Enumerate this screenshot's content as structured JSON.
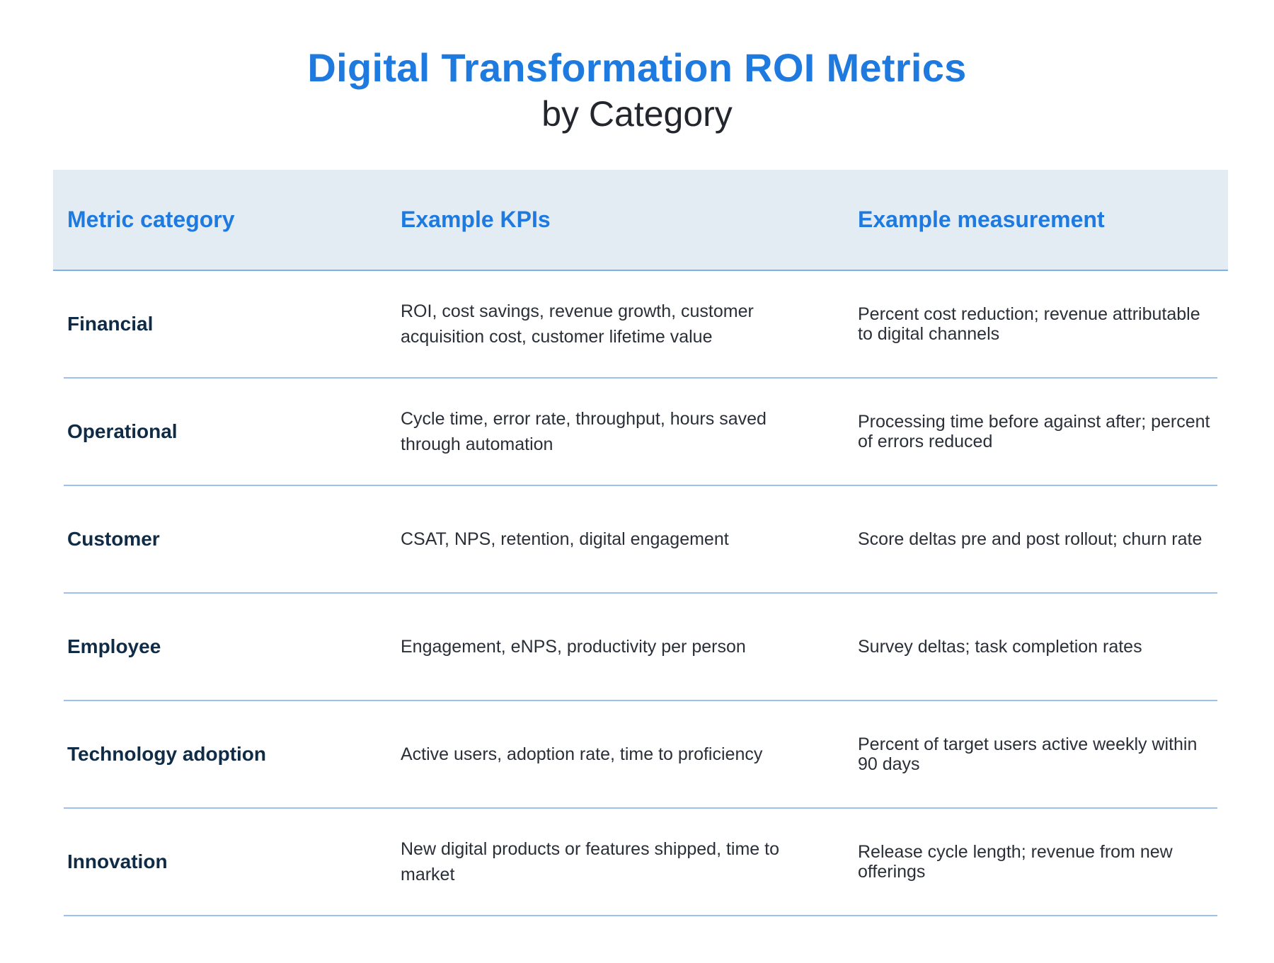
{
  "title": "Digital Transformation ROI Metrics",
  "subtitle": "by Category",
  "table": {
    "headers": [
      "Metric category",
      "Example KPIs",
      "Example measurement"
    ],
    "rows": [
      {
        "category": "Financial",
        "kpis": "ROI, cost savings, revenue growth, customer acquisition cost, customer lifetime value",
        "measurement": "Percent cost reduction; revenue attributable to digital channels"
      },
      {
        "category": "Operational",
        "kpis": "Cycle time, error rate, throughput, hours saved through automation",
        "measurement": "Processing time before against after; percent of errors reduced"
      },
      {
        "category": "Customer",
        "kpis": "CSAT, NPS, retention, digital engagement",
        "measurement": "Score deltas pre and post rollout; churn rate"
      },
      {
        "category": "Employee",
        "kpis": "Engagement, eNPS, productivity per person",
        "measurement": "Survey deltas; task completion rates"
      },
      {
        "category": "Technology adoption",
        "kpis": "Active users, adoption rate, time to proficiency",
        "measurement": "Percent of target users active weekly within 90 days"
      },
      {
        "category": "Innovation",
        "kpis": "New digital products or features shipped, time to market",
        "measurement": "Release cycle length; revenue from new offerings"
      }
    ]
  }
}
